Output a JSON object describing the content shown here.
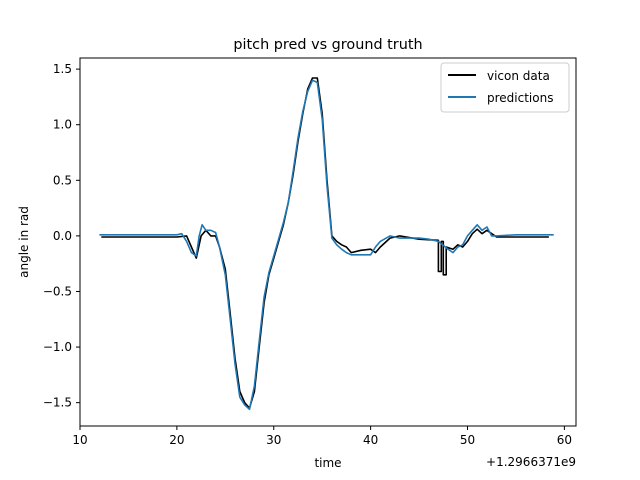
{
  "chart_data": {
    "type": "line",
    "title": "pitch pred vs ground truth",
    "xlabel": "time",
    "ylabel": "angle in rad",
    "x_offset_label": "+1.2966371e9",
    "xlim": [
      10.0,
      61.2
    ],
    "ylim": [
      -1.71,
      1.6
    ],
    "x_ticks": [
      10,
      20,
      30,
      40,
      50,
      60
    ],
    "x_tick_labels": [
      "10",
      "20",
      "30",
      "40",
      "50",
      "60"
    ],
    "y_ticks": [
      1.5,
      1.0,
      0.5,
      0.0,
      -0.5,
      -1.0,
      -1.5
    ],
    "y_tick_labels": [
      "1.5",
      "1.0",
      "0.5",
      "0.0",
      "−0.5",
      "−1.0",
      "−1.5"
    ],
    "grid": false,
    "legend_position": "top-right",
    "series": [
      {
        "name": "vicon data",
        "color": "#000000",
        "points": [
          [
            12.2,
            -0.01
          ],
          [
            14,
            -0.01
          ],
          [
            16,
            -0.01
          ],
          [
            18,
            -0.01
          ],
          [
            20,
            -0.01
          ],
          [
            21.0,
            0.0
          ],
          [
            21.5,
            -0.1
          ],
          [
            22.0,
            -0.2
          ],
          [
            22.5,
            0.0
          ],
          [
            23.0,
            0.05
          ],
          [
            23.5,
            0.0
          ],
          [
            24.0,
            0.0
          ],
          [
            24.4,
            -0.1
          ],
          [
            25.0,
            -0.3
          ],
          [
            25.5,
            -0.7
          ],
          [
            26.0,
            -1.1
          ],
          [
            26.5,
            -1.4
          ],
          [
            27.0,
            -1.5
          ],
          [
            27.5,
            -1.55
          ],
          [
            28.0,
            -1.4
          ],
          [
            28.5,
            -1.0
          ],
          [
            29.0,
            -0.6
          ],
          [
            29.5,
            -0.35
          ],
          [
            30.0,
            -0.2
          ],
          [
            30.5,
            -0.05
          ],
          [
            31.0,
            0.1
          ],
          [
            31.5,
            0.3
          ],
          [
            32.0,
            0.55
          ],
          [
            32.5,
            0.85
          ],
          [
            33.0,
            1.1
          ],
          [
            33.5,
            1.32
          ],
          [
            34.0,
            1.42
          ],
          [
            34.5,
            1.42
          ],
          [
            35.0,
            1.1
          ],
          [
            35.5,
            0.5
          ],
          [
            36.0,
            0.0
          ],
          [
            36.5,
            -0.05
          ],
          [
            37.0,
            -0.08
          ],
          [
            37.5,
            -0.1
          ],
          [
            38.0,
            -0.15
          ],
          [
            39.0,
            -0.13
          ],
          [
            40.0,
            -0.12
          ],
          [
            40.5,
            -0.15
          ],
          [
            41.0,
            -0.1
          ],
          [
            42.0,
            -0.02
          ],
          [
            43.0,
            0.0
          ],
          [
            45.0,
            -0.03
          ],
          [
            47.0,
            -0.04
          ],
          [
            47.0,
            -0.32
          ],
          [
            47.3,
            -0.32
          ],
          [
            47.3,
            -0.05
          ],
          [
            47.5,
            -0.05
          ],
          [
            47.5,
            -0.35
          ],
          [
            47.8,
            -0.35
          ],
          [
            47.8,
            -0.1
          ],
          [
            48.5,
            -0.12
          ],
          [
            49.0,
            -0.08
          ],
          [
            49.5,
            -0.1
          ],
          [
            50.0,
            -0.05
          ],
          [
            50.5,
            0.02
          ],
          [
            51.0,
            0.06
          ],
          [
            51.5,
            0.02
          ],
          [
            52.0,
            0.05
          ],
          [
            53.0,
            -0.01
          ],
          [
            55.0,
            -0.01
          ],
          [
            58.4,
            -0.01
          ]
        ]
      },
      {
        "name": "predictions",
        "color": "#1f77b4",
        "points": [
          [
            12.0,
            0.01
          ],
          [
            14,
            0.01
          ],
          [
            16,
            0.01
          ],
          [
            18,
            0.01
          ],
          [
            20,
            0.01
          ],
          [
            20.5,
            0.02
          ],
          [
            21.0,
            -0.05
          ],
          [
            21.5,
            -0.15
          ],
          [
            22.0,
            -0.18
          ],
          [
            22.3,
            0.0
          ],
          [
            22.6,
            0.1
          ],
          [
            23.0,
            0.05
          ],
          [
            23.5,
            0.05
          ],
          [
            24.0,
            0.03
          ],
          [
            24.4,
            -0.1
          ],
          [
            25.0,
            -0.35
          ],
          [
            25.5,
            -0.75
          ],
          [
            26.0,
            -1.15
          ],
          [
            26.5,
            -1.45
          ],
          [
            27.0,
            -1.52
          ],
          [
            27.5,
            -1.56
          ],
          [
            28.0,
            -1.35
          ],
          [
            28.5,
            -0.95
          ],
          [
            29.0,
            -0.55
          ],
          [
            29.5,
            -0.33
          ],
          [
            30.0,
            -0.18
          ],
          [
            30.5,
            -0.03
          ],
          [
            31.0,
            0.12
          ],
          [
            31.5,
            0.3
          ],
          [
            32.0,
            0.58
          ],
          [
            32.5,
            0.88
          ],
          [
            33.0,
            1.12
          ],
          [
            33.5,
            1.3
          ],
          [
            34.0,
            1.4
          ],
          [
            34.5,
            1.38
          ],
          [
            35.0,
            1.05
          ],
          [
            35.5,
            0.45
          ],
          [
            36.0,
            -0.02
          ],
          [
            36.5,
            -0.08
          ],
          [
            37.0,
            -0.12
          ],
          [
            37.5,
            -0.15
          ],
          [
            38.0,
            -0.17
          ],
          [
            39.0,
            -0.17
          ],
          [
            40.0,
            -0.17
          ],
          [
            40.5,
            -0.1
          ],
          [
            41.0,
            -0.05
          ],
          [
            42.0,
            0.0
          ],
          [
            43.0,
            -0.02
          ],
          [
            44.0,
            -0.02
          ],
          [
            45.0,
            -0.02
          ],
          [
            46.0,
            -0.03
          ],
          [
            47.0,
            -0.05
          ],
          [
            48.0,
            -0.12
          ],
          [
            48.5,
            -0.15
          ],
          [
            49.0,
            -0.1
          ],
          [
            49.5,
            -0.08
          ],
          [
            50.0,
            0.0
          ],
          [
            50.5,
            0.05
          ],
          [
            51.0,
            0.1
          ],
          [
            51.5,
            0.05
          ],
          [
            52.0,
            0.08
          ],
          [
            52.5,
            0.0
          ],
          [
            53.0,
            0.0
          ],
          [
            55.0,
            0.01
          ],
          [
            58.9,
            0.01
          ]
        ]
      }
    ]
  }
}
